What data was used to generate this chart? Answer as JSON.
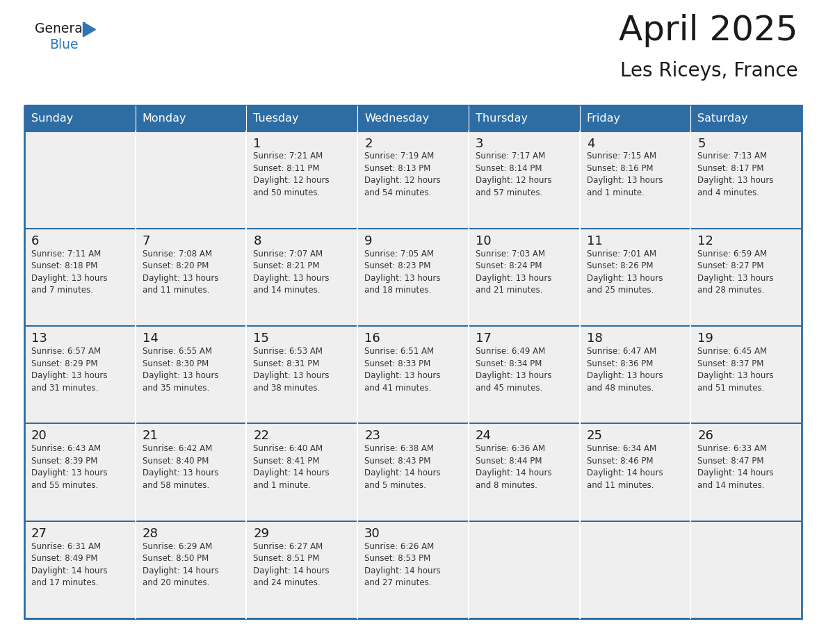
{
  "title": "April 2025",
  "subtitle": "Les Riceys, France",
  "header_color": "#2E6DA4",
  "header_text_color": "#FFFFFF",
  "cell_bg_color": "#EFEFEF",
  "day_names": [
    "Sunday",
    "Monday",
    "Tuesday",
    "Wednesday",
    "Thursday",
    "Friday",
    "Saturday"
  ],
  "weeks": [
    [
      {
        "day": "",
        "text": ""
      },
      {
        "day": "",
        "text": ""
      },
      {
        "day": "1",
        "text": "Sunrise: 7:21 AM\nSunset: 8:11 PM\nDaylight: 12 hours\nand 50 minutes."
      },
      {
        "day": "2",
        "text": "Sunrise: 7:19 AM\nSunset: 8:13 PM\nDaylight: 12 hours\nand 54 minutes."
      },
      {
        "day": "3",
        "text": "Sunrise: 7:17 AM\nSunset: 8:14 PM\nDaylight: 12 hours\nand 57 minutes."
      },
      {
        "day": "4",
        "text": "Sunrise: 7:15 AM\nSunset: 8:16 PM\nDaylight: 13 hours\nand 1 minute."
      },
      {
        "day": "5",
        "text": "Sunrise: 7:13 AM\nSunset: 8:17 PM\nDaylight: 13 hours\nand 4 minutes."
      }
    ],
    [
      {
        "day": "6",
        "text": "Sunrise: 7:11 AM\nSunset: 8:18 PM\nDaylight: 13 hours\nand 7 minutes."
      },
      {
        "day": "7",
        "text": "Sunrise: 7:08 AM\nSunset: 8:20 PM\nDaylight: 13 hours\nand 11 minutes."
      },
      {
        "day": "8",
        "text": "Sunrise: 7:07 AM\nSunset: 8:21 PM\nDaylight: 13 hours\nand 14 minutes."
      },
      {
        "day": "9",
        "text": "Sunrise: 7:05 AM\nSunset: 8:23 PM\nDaylight: 13 hours\nand 18 minutes."
      },
      {
        "day": "10",
        "text": "Sunrise: 7:03 AM\nSunset: 8:24 PM\nDaylight: 13 hours\nand 21 minutes."
      },
      {
        "day": "11",
        "text": "Sunrise: 7:01 AM\nSunset: 8:26 PM\nDaylight: 13 hours\nand 25 minutes."
      },
      {
        "day": "12",
        "text": "Sunrise: 6:59 AM\nSunset: 8:27 PM\nDaylight: 13 hours\nand 28 minutes."
      }
    ],
    [
      {
        "day": "13",
        "text": "Sunrise: 6:57 AM\nSunset: 8:29 PM\nDaylight: 13 hours\nand 31 minutes."
      },
      {
        "day": "14",
        "text": "Sunrise: 6:55 AM\nSunset: 8:30 PM\nDaylight: 13 hours\nand 35 minutes."
      },
      {
        "day": "15",
        "text": "Sunrise: 6:53 AM\nSunset: 8:31 PM\nDaylight: 13 hours\nand 38 minutes."
      },
      {
        "day": "16",
        "text": "Sunrise: 6:51 AM\nSunset: 8:33 PM\nDaylight: 13 hours\nand 41 minutes."
      },
      {
        "day": "17",
        "text": "Sunrise: 6:49 AM\nSunset: 8:34 PM\nDaylight: 13 hours\nand 45 minutes."
      },
      {
        "day": "18",
        "text": "Sunrise: 6:47 AM\nSunset: 8:36 PM\nDaylight: 13 hours\nand 48 minutes."
      },
      {
        "day": "19",
        "text": "Sunrise: 6:45 AM\nSunset: 8:37 PM\nDaylight: 13 hours\nand 51 minutes."
      }
    ],
    [
      {
        "day": "20",
        "text": "Sunrise: 6:43 AM\nSunset: 8:39 PM\nDaylight: 13 hours\nand 55 minutes."
      },
      {
        "day": "21",
        "text": "Sunrise: 6:42 AM\nSunset: 8:40 PM\nDaylight: 13 hours\nand 58 minutes."
      },
      {
        "day": "22",
        "text": "Sunrise: 6:40 AM\nSunset: 8:41 PM\nDaylight: 14 hours\nand 1 minute."
      },
      {
        "day": "23",
        "text": "Sunrise: 6:38 AM\nSunset: 8:43 PM\nDaylight: 14 hours\nand 5 minutes."
      },
      {
        "day": "24",
        "text": "Sunrise: 6:36 AM\nSunset: 8:44 PM\nDaylight: 14 hours\nand 8 minutes."
      },
      {
        "day": "25",
        "text": "Sunrise: 6:34 AM\nSunset: 8:46 PM\nDaylight: 14 hours\nand 11 minutes."
      },
      {
        "day": "26",
        "text": "Sunrise: 6:33 AM\nSunset: 8:47 PM\nDaylight: 14 hours\nand 14 minutes."
      }
    ],
    [
      {
        "day": "27",
        "text": "Sunrise: 6:31 AM\nSunset: 8:49 PM\nDaylight: 14 hours\nand 17 minutes."
      },
      {
        "day": "28",
        "text": "Sunrise: 6:29 AM\nSunset: 8:50 PM\nDaylight: 14 hours\nand 20 minutes."
      },
      {
        "day": "29",
        "text": "Sunrise: 6:27 AM\nSunset: 8:51 PM\nDaylight: 14 hours\nand 24 minutes."
      },
      {
        "day": "30",
        "text": "Sunrise: 6:26 AM\nSunset: 8:53 PM\nDaylight: 14 hours\nand 27 minutes."
      },
      {
        "day": "",
        "text": ""
      },
      {
        "day": "",
        "text": ""
      },
      {
        "day": "",
        "text": ""
      }
    ]
  ],
  "logo_general_color": "#1a1a1a",
  "logo_blue_color": "#2E75B6",
  "title_fontsize": 36,
  "subtitle_fontsize": 20,
  "day_name_fontsize": 11.5,
  "day_num_fontsize": 13,
  "cell_text_fontsize": 8.5,
  "header_color_hex": "#2E6DA4",
  "line_color": "#2E6DA4",
  "border_color": "#2E6DA4"
}
